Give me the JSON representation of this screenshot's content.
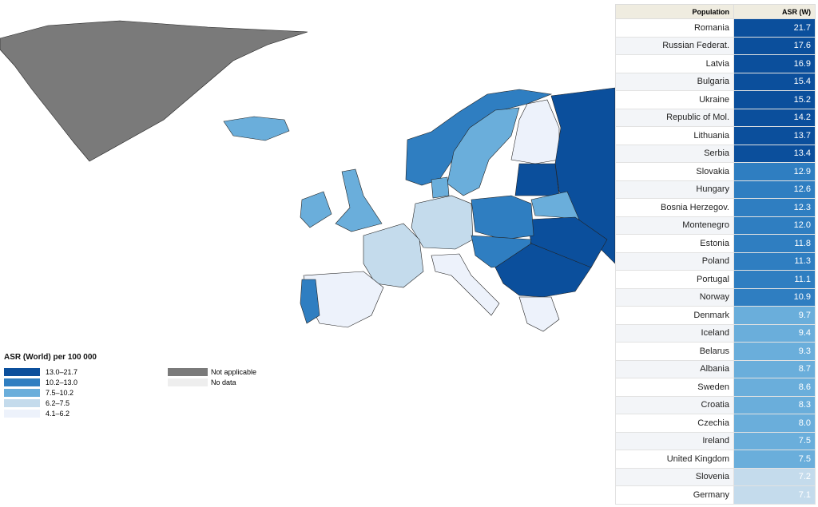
{
  "legend": {
    "title": "ASR (World) per 100 000",
    "items": [
      {
        "label": "13.0–21.7",
        "color": "#0b4f9c"
      },
      {
        "label": "10.2–13.0",
        "color": "#2f7ec1"
      },
      {
        "label": "7.5–10.2",
        "color": "#6aaedb"
      },
      {
        "label": "6.2–7.5",
        "color": "#c4dbec"
      },
      {
        "label": "4.1–6.2",
        "color": "#edf2fb"
      }
    ],
    "extra": [
      {
        "label": "Not applicable",
        "color": "#7a7a7a"
      },
      {
        "label": "No data",
        "color": "#eeeeee"
      }
    ]
  },
  "table": {
    "headers": [
      "Population",
      "ASR (W)"
    ],
    "rows": [
      {
        "population": "Romania",
        "asr": "21.7",
        "color": "#0b4f9c"
      },
      {
        "population": "Russian Federat.",
        "asr": "17.6",
        "color": "#0b4f9c"
      },
      {
        "population": "Latvia",
        "asr": "16.9",
        "color": "#0b4f9c"
      },
      {
        "population": "Bulgaria",
        "asr": "15.4",
        "color": "#0b4f9c"
      },
      {
        "population": "Ukraine",
        "asr": "15.2",
        "color": "#0b4f9c"
      },
      {
        "population": "Republic of Mol.",
        "asr": "14.2",
        "color": "#0b4f9c"
      },
      {
        "population": "Lithuania",
        "asr": "13.7",
        "color": "#0b4f9c"
      },
      {
        "population": "Serbia",
        "asr": "13.4",
        "color": "#0b4f9c"
      },
      {
        "population": "Slovakia",
        "asr": "12.9",
        "color": "#2f7ec1"
      },
      {
        "population": "Hungary",
        "asr": "12.6",
        "color": "#2f7ec1"
      },
      {
        "population": "Bosnia Herzegov.",
        "asr": "12.3",
        "color": "#2f7ec1"
      },
      {
        "population": "Montenegro",
        "asr": "12.0",
        "color": "#2f7ec1"
      },
      {
        "population": "Estonia",
        "asr": "11.8",
        "color": "#2f7ec1"
      },
      {
        "population": "Poland",
        "asr": "11.3",
        "color": "#2f7ec1"
      },
      {
        "population": "Portugal",
        "asr": "11.1",
        "color": "#2f7ec1"
      },
      {
        "population": "Norway",
        "asr": "10.9",
        "color": "#2f7ec1"
      },
      {
        "population": "Denmark",
        "asr": "9.7",
        "color": "#6aaedb"
      },
      {
        "population": "Iceland",
        "asr": "9.4",
        "color": "#6aaedb"
      },
      {
        "population": "Belarus",
        "asr": "9.3",
        "color": "#6aaedb"
      },
      {
        "population": "Albania",
        "asr": "8.7",
        "color": "#6aaedb"
      },
      {
        "population": "Sweden",
        "asr": "8.6",
        "color": "#6aaedb"
      },
      {
        "population": "Croatia",
        "asr": "8.3",
        "color": "#6aaedb"
      },
      {
        "population": "Czechia",
        "asr": "8.0",
        "color": "#6aaedb"
      },
      {
        "population": "Ireland",
        "asr": "7.5",
        "color": "#6aaedb"
      },
      {
        "population": "United Kingdom",
        "asr": "7.5",
        "color": "#6aaedb"
      },
      {
        "population": "Slovenia",
        "asr": "7.2",
        "color": "#c4dbec"
      },
      {
        "population": "Germany",
        "asr": "7.1",
        "color": "#c4dbec"
      }
    ]
  }
}
